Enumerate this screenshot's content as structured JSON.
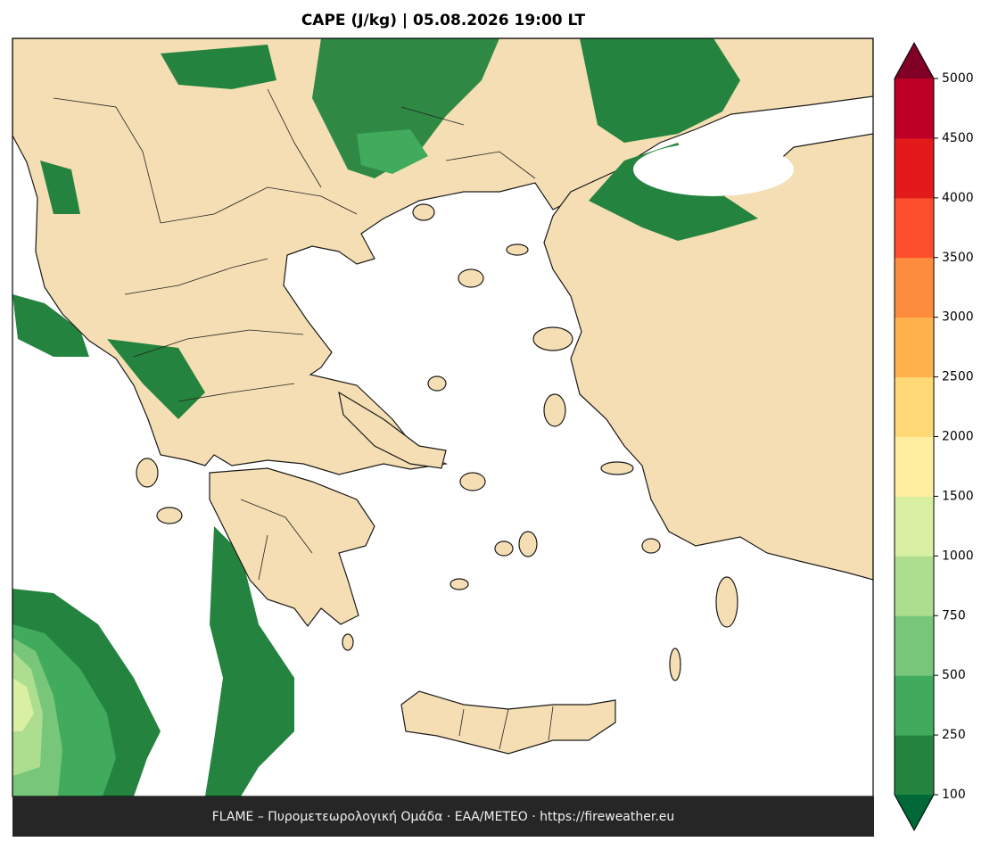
{
  "title": "CAPE (J/kg)  |  05.08.2026 19:00 LT",
  "footer": "FLAME – Πυρομετεωρολογική Ομάδα · ΕΑΑ/METEO · https://fireweather.eu",
  "colorbar": {
    "ticks": [
      100,
      250,
      500,
      750,
      1000,
      1500,
      2000,
      2500,
      3000,
      3500,
      4000,
      4500,
      5000
    ],
    "colors": [
      "#24843f",
      "#41ab5d",
      "#78c679",
      "#addd8e",
      "#d9f0a3",
      "#ffeda0",
      "#fed976",
      "#feb24c",
      "#fd8d3c",
      "#fc4e2a",
      "#e31a1c",
      "#bd0026"
    ],
    "under_color": "#006837",
    "over_color": "#800026"
  }
}
